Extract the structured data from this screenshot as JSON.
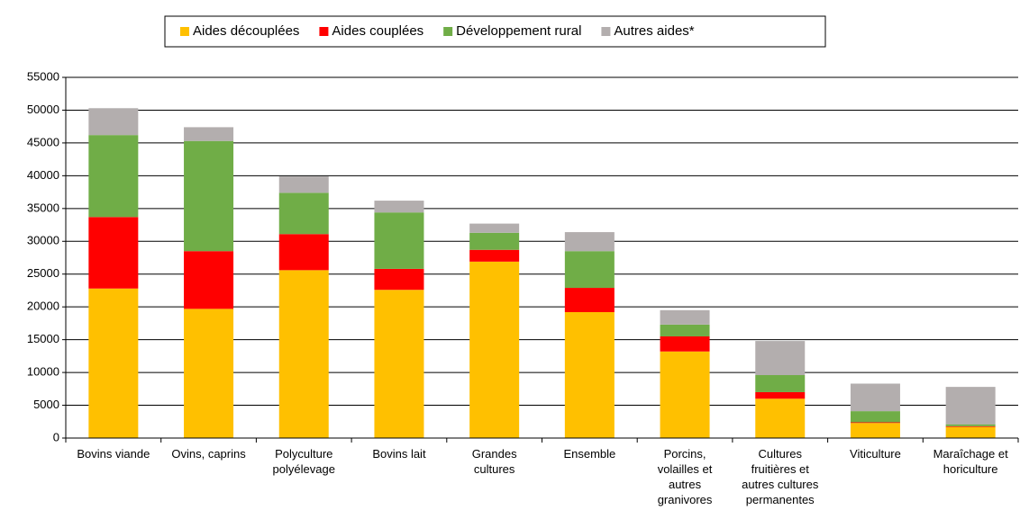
{
  "chart_data": {
    "type": "stacked-bar",
    "categories": [
      "Bovins viande",
      "Ovins, caprins",
      "Polyculture polyélevage",
      "Bovins lait",
      "Grandes cultures",
      "Ensemble",
      "Porcins, volailles et autres granivores",
      "Cultures fruitières et autres cultures permanentes",
      "Viticulture",
      "Maraîchage et horiculture"
    ],
    "series": [
      {
        "name": "Aides découplées",
        "color": "#ffc000",
        "values": [
          22800,
          19700,
          25600,
          22600,
          26900,
          19200,
          13200,
          6000,
          2300,
          1700
        ]
      },
      {
        "name": "Aides couplées",
        "color": "#ff0000",
        "values": [
          10900,
          8800,
          5500,
          3200,
          1800,
          3700,
          2300,
          1000,
          100,
          100
        ]
      },
      {
        "name": "Développement rural",
        "color": "#70ad47",
        "values": [
          12500,
          16800,
          6300,
          8600,
          2600,
          5600,
          1800,
          2600,
          1700,
          300
        ]
      },
      {
        "name": "Autres aides*",
        "color": "#b3aeae",
        "values": [
          4100,
          2100,
          2500,
          1800,
          1400,
          2900,
          2200,
          5200,
          4200,
          5700
        ]
      }
    ],
    "ylim": [
      0,
      55000
    ],
    "yticks": [
      0,
      5000,
      10000,
      15000,
      20000,
      25000,
      30000,
      35000,
      40000,
      45000,
      50000,
      55000
    ],
    "grid": true,
    "legend": "top"
  }
}
